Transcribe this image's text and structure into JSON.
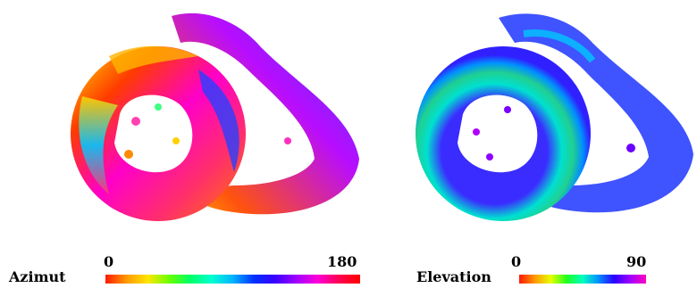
{
  "colorbars": {
    "azimut": {
      "title": "Azimut",
      "min": "0",
      "max": "180"
    },
    "elevation": {
      "title": "Elevation",
      "min": "0",
      "max": "90"
    }
  },
  "colors": {
    "background": "#ffffff",
    "label_text": "#000000"
  },
  "images": {
    "left": "azimuth-color-map",
    "right": "elevation-color-map"
  }
}
